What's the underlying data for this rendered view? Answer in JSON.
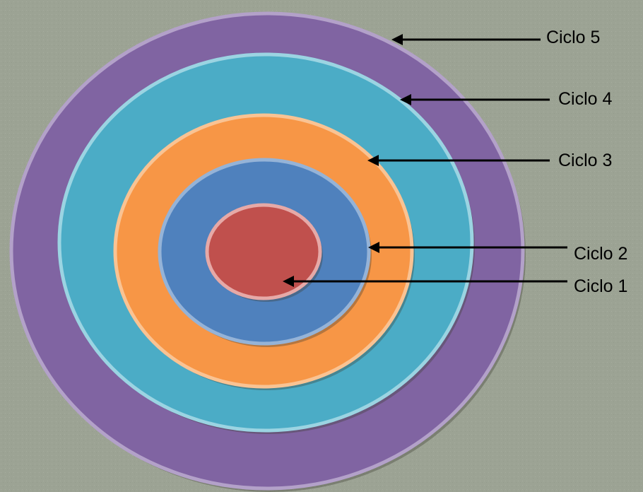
{
  "diagram": {
    "background_color": "#9ca394",
    "rings": [
      {
        "label": "Ciclo 5",
        "color": "#8064a2",
        "edge_color": "#b3a1c9"
      },
      {
        "label": "Ciclo 4",
        "color": "#4bacc6",
        "edge_color": "#9bd4e2"
      },
      {
        "label": "Ciclo 3",
        "color": "#f79646",
        "edge_color": "#f9c393"
      },
      {
        "label": "Ciclo 2",
        "color": "#4f81bd",
        "edge_color": "#95b3d7"
      },
      {
        "label": "Ciclo 1",
        "color": "#c0504d",
        "edge_color": "#e6a9a7"
      }
    ],
    "arrow_color": "#000000"
  }
}
